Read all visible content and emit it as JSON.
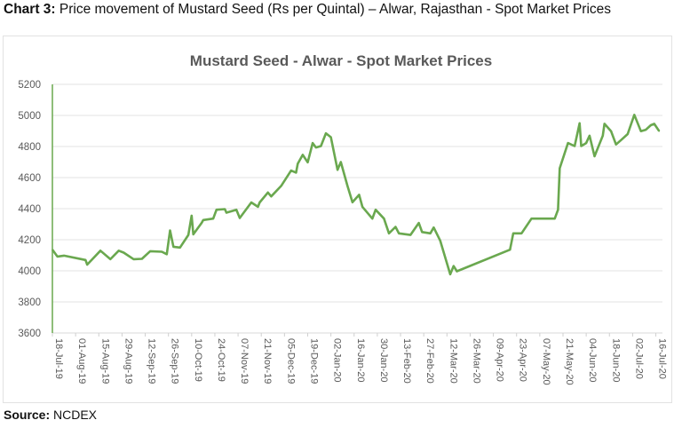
{
  "heading": {
    "label": "Chart 3:",
    "text": "Price movement of Mustard Seed (Rs per Quintal) – Alwar, Rajasthan - Spot Market Prices"
  },
  "source": {
    "label": "Source:",
    "text": "NCDEX"
  },
  "chart_data": {
    "type": "line",
    "title": "Mustard Seed - Alwar - Spot Market Prices",
    "xlabel": "",
    "ylabel": "",
    "ylim": [
      3600,
      5200
    ],
    "xlim": [
      "2019-07-18",
      "2020-07-20"
    ],
    "yticks": [
      3600,
      3800,
      4000,
      4200,
      4400,
      4600,
      4800,
      5000,
      5200
    ],
    "xtick_dates": [
      "2019-07-18",
      "2019-08-01",
      "2019-08-15",
      "2019-08-29",
      "2019-09-12",
      "2019-09-26",
      "2019-10-10",
      "2019-10-24",
      "2019-11-07",
      "2019-11-21",
      "2019-12-05",
      "2019-12-19",
      "2020-01-02",
      "2020-01-16",
      "2020-01-30",
      "2020-02-13",
      "2020-02-27",
      "2020-03-12",
      "2020-03-26",
      "2020-04-09",
      "2020-04-23",
      "2020-05-07",
      "2020-05-21",
      "2020-06-04",
      "2020-06-18",
      "2020-07-02",
      "2020-07-16"
    ],
    "xtick_labels": [
      "18-Jul-19",
      "01-Aug-19",
      "15-Aug-19",
      "29-Aug-19",
      "12-Sep-19",
      "26-Sep-19",
      "10-Oct-19",
      "24-Oct-19",
      "07-Nov-19",
      "21-Nov-19",
      "05-Dec-19",
      "19-Dec-19",
      "02-Jan-20",
      "16-Jan-20",
      "30-Jan-20",
      "13-Feb-20",
      "27-Feb-20",
      "12-Mar-20",
      "26-Mar-20",
      "09-Apr-20",
      "23-Apr-20",
      "07-May-20",
      "21-May-20",
      "04-Jun-20",
      "18-Jun-20",
      "02-Jul-20",
      "16-Jul-20"
    ],
    "grid": true,
    "legend": "none",
    "line_color": "#6aa84f",
    "series": [
      {
        "x": [
          "2019-07-18",
          "2019-07-21",
          "2019-07-25",
          "2019-08-07",
          "2019-08-08",
          "2019-08-16",
          "2019-08-22",
          "2019-08-27",
          "2019-08-30",
          "2019-09-05",
          "2019-09-10",
          "2019-09-15",
          "2019-09-22",
          "2019-09-25",
          "2019-09-27",
          "2019-09-29",
          "2019-10-03",
          "2019-10-08",
          "2019-10-10",
          "2019-10-11",
          "2019-10-16",
          "2019-10-17",
          "2019-10-23",
          "2019-10-25",
          "2019-10-30",
          "2019-10-31",
          "2019-11-06",
          "2019-11-08",
          "2019-11-15",
          "2019-11-19",
          "2019-11-20",
          "2019-11-25",
          "2019-11-27",
          "2019-12-03",
          "2019-12-09",
          "2019-12-12",
          "2019-12-13",
          "2019-12-16",
          "2019-12-19",
          "2019-12-22",
          "2019-12-24",
          "2019-12-27",
          "2019-12-30",
          "2020-01-02",
          "2020-01-06",
          "2020-01-08",
          "2020-01-12",
          "2020-01-15",
          "2020-01-19",
          "2020-01-21",
          "2020-01-27",
          "2020-01-29",
          "2020-02-03",
          "2020-02-06",
          "2020-02-10",
          "2020-02-12",
          "2020-02-19",
          "2020-02-24",
          "2020-02-26",
          "2020-03-02",
          "2020-03-04",
          "2020-03-08",
          "2020-03-14",
          "2020-03-16",
          "2020-03-18",
          "2020-04-19",
          "2020-04-21",
          "2020-04-26",
          "2020-05-02",
          "2020-05-16",
          "2020-05-18",
          "2020-05-19",
          "2020-05-24",
          "2020-05-28",
          "2020-05-31",
          "2020-06-01",
          "2020-06-04",
          "2020-06-06",
          "2020-06-09",
          "2020-06-14",
          "2020-06-15",
          "2020-06-19",
          "2020-06-22",
          "2020-06-25",
          "2020-06-29",
          "2020-07-03",
          "2020-07-07",
          "2020-07-10",
          "2020-07-13",
          "2020-07-15",
          "2020-07-18"
        ],
        "y": [
          4136,
          4092,
          4098,
          4070,
          4040,
          4130,
          4075,
          4130,
          4117,
          4075,
          4077,
          4126,
          4123,
          4107,
          4260,
          4155,
          4150,
          4231,
          4355,
          4235,
          4308,
          4327,
          4336,
          4393,
          4397,
          4374,
          4393,
          4340,
          4440,
          4412,
          4440,
          4504,
          4479,
          4546,
          4645,
          4632,
          4689,
          4746,
          4698,
          4822,
          4794,
          4803,
          4885,
          4860,
          4650,
          4700,
          4546,
          4441,
          4489,
          4412,
          4336,
          4393,
          4336,
          4241,
          4283,
          4241,
          4231,
          4308,
          4250,
          4241,
          4279,
          4193,
          3978,
          4031,
          3997,
          4136,
          4241,
          4241,
          4336,
          4336,
          4393,
          4660,
          4822,
          4803,
          4950,
          4803,
          4822,
          4870,
          4737,
          4870,
          4946,
          4899,
          4813,
          4841,
          4880,
          5004,
          4899,
          4908,
          4937,
          4946,
          4899
        ]
      }
    ]
  }
}
